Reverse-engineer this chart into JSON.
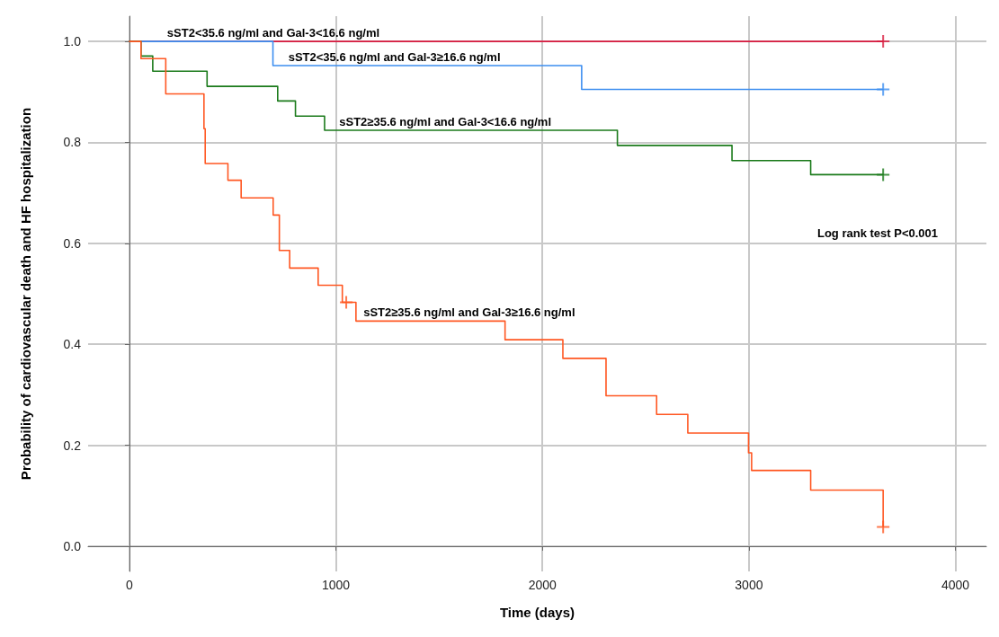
{
  "chart_data": {
    "type": "step",
    "xlabel": "Time (days)",
    "ylabel": "Probability of cardiovascular death and HF hospitalization",
    "xlim": [
      -200,
      4150
    ],
    "xticks": [
      0,
      1000,
      2000,
      3000,
      4000
    ],
    "ylim": [
      -0.05,
      1.05
    ],
    "yticks": [
      {
        "value": 0,
        "label": "0.0"
      },
      {
        "value": 0.2,
        "label": "0.2"
      },
      {
        "value": 0.4,
        "label": "0.4"
      },
      {
        "value": 0.6,
        "label": "0.6"
      },
      {
        "value": 0.8,
        "label": "0.8"
      },
      {
        "value": 1,
        "label": "1.0"
      }
    ],
    "grid": true,
    "legend": false,
    "line_style": "solid",
    "marker": "none",
    "annotations": [
      "Log rank test P<0.001"
    ],
    "series": [
      {
        "name": "sST2<35.6 ng/ml and Gal-3<16.6 ng/ml",
        "color": "#d81b3f",
        "x": [
          0,
          3650
        ],
        "values": [
          1,
          1
        ]
      },
      {
        "name": "sST2<35.6 ng/ml and Gal-3≥16.6 ng/ml",
        "color": "#3d8ef0",
        "x": [
          0,
          695,
          2190,
          3650
        ],
        "values": [
          1,
          0.952,
          0.905,
          0.905
        ]
      },
      {
        "name": "sST2≥35.6 ng/ml and Gal-3<16.6 ng/ml",
        "color": "#1a7a1a",
        "x": [
          0,
          56,
          113,
          376,
          718,
          804,
          945,
          2363,
          2918,
          3299,
          3650
        ],
        "values": [
          1,
          0.971,
          0.941,
          0.911,
          0.882,
          0.852,
          0.824,
          0.794,
          0.764,
          0.736,
          0.736
        ]
      },
      {
        "name": "sST2≥35.6 ng/ml and Gal-3≥16.6 ng/ml",
        "color": "#ff5722",
        "x": [
          0,
          56,
          176,
          361,
          367,
          477,
          541,
          696,
          726,
          776,
          914,
          1031,
          1097,
          1819,
          2099,
          2308,
          2553,
          2704,
          2998,
          3013,
          3299,
          3650
        ],
        "values": [
          1,
          0.966,
          0.896,
          0.827,
          0.758,
          0.725,
          0.69,
          0.656,
          0.586,
          0.551,
          0.517,
          0.483,
          0.446,
          0.409,
          0.372,
          0.298,
          0.261,
          0.224,
          0.185,
          0.15,
          0.111,
          0.038
        ]
      },
      {
        "type": "scatter",
        "marker": "cross",
        "color": "#d81b3f",
        "x": [
          3650
        ],
        "values": [
          1
        ]
      },
      {
        "type": "scatter",
        "marker": "cross",
        "color": "#3d8ef0",
        "x": [
          3650
        ],
        "values": [
          0.905
        ]
      },
      {
        "type": "scatter",
        "marker": "cross",
        "color": "#1a7a1a",
        "x": [
          3650
        ],
        "values": [
          0.736
        ]
      },
      {
        "type": "scatter",
        "marker": "cross",
        "color": "#ff5722",
        "x": [
          1050,
          3650
        ],
        "values": [
          0.483,
          0.038
        ]
      }
    ]
  }
}
